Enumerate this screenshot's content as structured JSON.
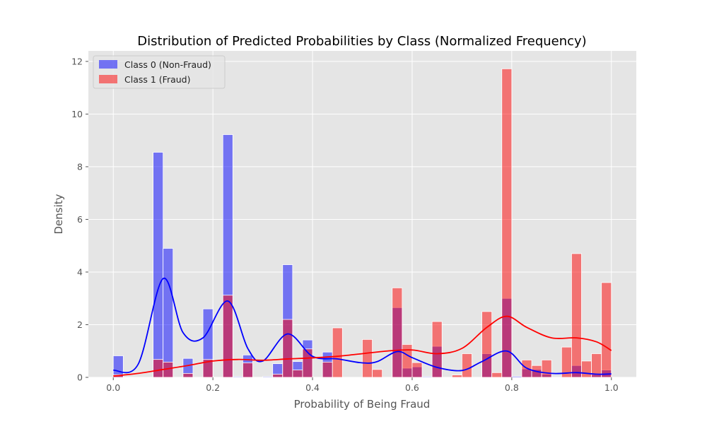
{
  "chart_data": {
    "type": "bar",
    "title": "Distribution of Predicted Probabilities by Class (Normalized Frequency)",
    "xlabel": "Probability of Being Fraud",
    "ylabel": "Density",
    "xlim": [
      -0.05,
      1.05
    ],
    "ylim": [
      0,
      12.4
    ],
    "xticks": [
      "0.0",
      "0.2",
      "0.4",
      "0.6",
      "0.8",
      "1.0"
    ],
    "yticks": [
      "0",
      "2",
      "4",
      "6",
      "8",
      "10",
      "12"
    ],
    "grid": true,
    "legend_position": "top-left",
    "bin_width": 0.02,
    "bin_start": 0.0,
    "colors": {
      "class0": "#0000ff",
      "class1": "#ff0000",
      "background": "#e5e5e5"
    },
    "series": [
      {
        "name": "Class 0 (Non-Fraud)",
        "values": [
          0.82,
          0,
          0,
          0,
          8.55,
          4.9,
          0,
          0.72,
          0,
          2.6,
          0,
          9.22,
          0.03,
          0.85,
          0,
          0.03,
          0.52,
          4.28,
          0.6,
          1.42,
          0,
          0.96,
          0,
          0,
          0,
          0,
          0,
          0,
          2.65,
          0.35,
          0.4,
          0.03,
          1.18,
          0,
          0,
          0,
          0,
          0.9,
          0,
          3.0,
          0.04,
          0.32,
          0.3,
          0.12,
          0,
          0,
          0.45,
          0,
          0.1,
          0.28
        ],
        "kde": {
          "x": [
            0,
            0.05,
            0.1,
            0.14,
            0.18,
            0.23,
            0.27,
            0.3,
            0.35,
            0.4,
            0.45,
            0.5,
            0.53,
            0.57,
            0.6,
            0.65,
            0.7,
            0.74,
            0.79,
            0.83,
            0.88,
            0.93,
            0.97,
            1.0
          ],
          "y": [
            0.27,
            0.5,
            3.75,
            1.7,
            1.5,
            2.9,
            1.1,
            0.62,
            1.65,
            0.8,
            0.7,
            0.55,
            0.6,
            0.98,
            0.75,
            0.38,
            0.26,
            0.6,
            1.0,
            0.35,
            0.15,
            0.18,
            0.12,
            0.13
          ]
        }
      },
      {
        "name": "Class 1 (Fraud)",
        "values": [
          0.1,
          0,
          0,
          0,
          0.68,
          0.58,
          0,
          0.15,
          0,
          0.68,
          0,
          3.12,
          0,
          0.55,
          0,
          0,
          0.12,
          2.2,
          0.28,
          1.08,
          0,
          0.58,
          1.88,
          0,
          0,
          1.44,
          0.3,
          0,
          3.4,
          1.25,
          0.56,
          0,
          2.12,
          0,
          0.09,
          0.9,
          0,
          2.5,
          0.18,
          11.72,
          0,
          0.66,
          0.45,
          0.66,
          0,
          1.15,
          4.7,
          0.62,
          0.9,
          3.6
        ],
        "kde": {
          "x": [
            0,
            0.05,
            0.1,
            0.15,
            0.2,
            0.25,
            0.3,
            0.35,
            0.4,
            0.45,
            0.5,
            0.55,
            0.6,
            0.65,
            0.7,
            0.75,
            0.79,
            0.83,
            0.88,
            0.93,
            0.97,
            1.0
          ],
          "y": [
            0.05,
            0.15,
            0.3,
            0.45,
            0.62,
            0.68,
            0.65,
            0.7,
            0.74,
            0.8,
            0.9,
            1.0,
            1.04,
            0.9,
            1.1,
            1.9,
            2.32,
            1.9,
            1.5,
            1.5,
            1.35,
            1.02
          ]
        }
      }
    ]
  }
}
